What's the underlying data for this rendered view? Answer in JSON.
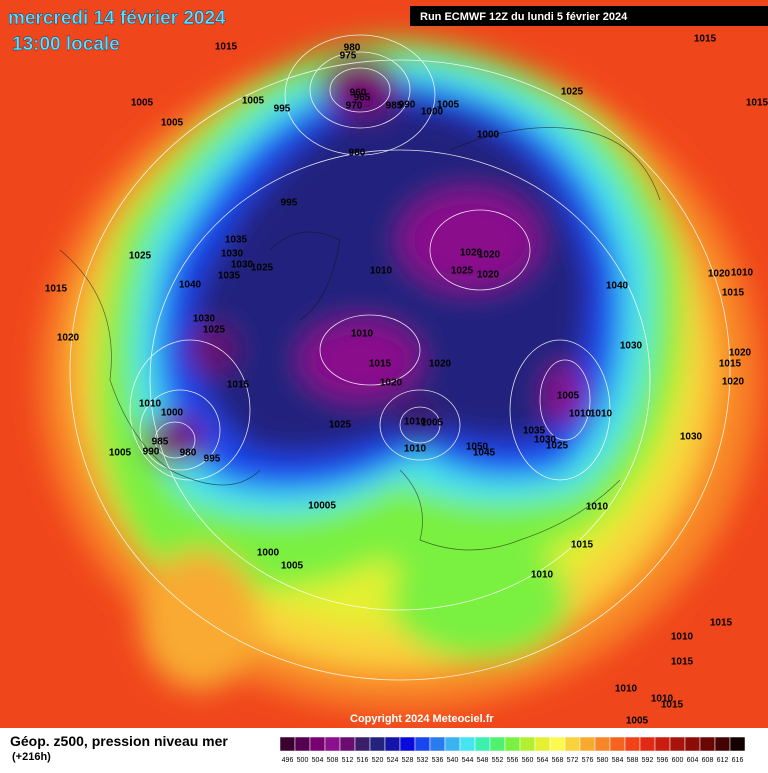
{
  "header": {
    "date": "mercredi 14 février 2024",
    "time": "13:00 locale",
    "run": "Run ECMWF 12Z du lundi 5 février 2024"
  },
  "copyright": "Copyright 2024 Meteociel.fr",
  "legend": {
    "title": "Géop. z500, pression niveau mer",
    "subtitle": "(+216h)",
    "values": [
      496,
      500,
      504,
      508,
      512,
      516,
      520,
      524,
      528,
      532,
      536,
      540,
      544,
      548,
      552,
      556,
      560,
      564,
      568,
      572,
      576,
      580,
      584,
      588,
      592,
      596,
      600,
      604,
      608,
      612,
      616
    ],
    "colors": [
      "#3c0030",
      "#560050",
      "#760070",
      "#8a108c",
      "#6a0c70",
      "#3a1e6a",
      "#23237e",
      "#1414a8",
      "#0a0adc",
      "#1a46f0",
      "#2a7af0",
      "#3ab4f0",
      "#46e4f0",
      "#3cf0b0",
      "#50f070",
      "#7af040",
      "#b0f030",
      "#e4f030",
      "#fafa50",
      "#fad23c",
      "#f8aa30",
      "#f68628",
      "#f46420",
      "#f04418",
      "#e02a14",
      "#c81e10",
      "#a8140c",
      "#8c0c08",
      "#6a0604",
      "#440202",
      "#140000"
    ]
  },
  "isobar_labels": [
    "1015",
    "980",
    "975",
    "960",
    "965",
    "970",
    "985",
    "990",
    "1005",
    "1000",
    "1015",
    "1025",
    "1005",
    "1005",
    "995",
    "1005",
    "1000",
    "980",
    "1015",
    "995",
    "1035",
    "1025",
    "1030",
    "1030",
    "1025",
    "1035",
    "1010",
    "1020",
    "1020",
    "1025",
    "1020",
    "1020",
    "1010",
    "1040",
    "1015",
    "1040",
    "1015",
    "1030",
    "1025",
    "1010",
    "1020",
    "1030",
    "1020",
    "1015",
    "1015",
    "1020",
    "1020",
    "1015",
    "1020",
    "1010",
    "1005",
    "1000",
    "1010",
    "1010",
    "1010",
    "1005",
    "1025",
    "1035",
    "1030",
    "985",
    "990",
    "980",
    "1005",
    "1025",
    "1010",
    "1030",
    "995",
    "1045",
    "1050",
    "10005",
    "1010",
    "1015",
    "1000",
    "1005",
    "1010",
    "1015",
    "1010",
    "1015",
    "1010",
    "1010",
    "1015",
    "1005"
  ]
}
